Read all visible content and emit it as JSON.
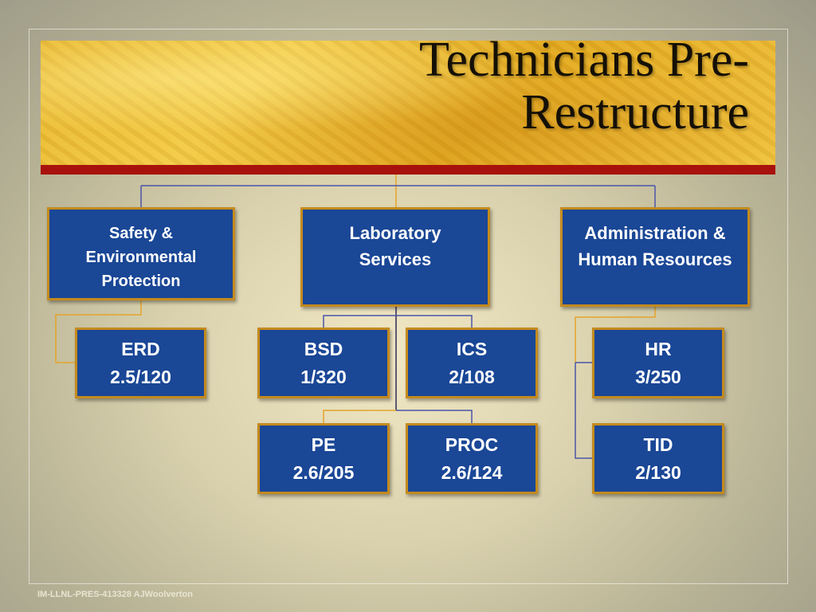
{
  "title": {
    "line1": "Technicians Pre-",
    "line2": "Restructure"
  },
  "departments": {
    "sep": {
      "name1": "Safety &",
      "name2": "Environmental",
      "name3": "Protection"
    },
    "lab": {
      "name1": "Laboratory",
      "name2": "Services"
    },
    "ahr": {
      "name1": "Administration &",
      "name2": "Human Resources"
    }
  },
  "units": {
    "erd": {
      "name": "ERD",
      "value": "2.5/120"
    },
    "bsd": {
      "name": "BSD",
      "value": "1/320"
    },
    "ics": {
      "name": "ICS",
      "value": "2/108"
    },
    "pe": {
      "name": "PE",
      "value": "2.6/205"
    },
    "proc": {
      "name": "PROC",
      "value": "2.6/124"
    },
    "hr": {
      "name": "HR",
      "value": "3/250"
    },
    "tid": {
      "name": "TID",
      "value": "2/130"
    }
  },
  "footer": "IM-LLNL-PRES-413328  AJWoolverton",
  "colors": {
    "box_fill": "#1a4796",
    "box_border": "#c48a1e",
    "accent_red": "#a8120c",
    "link_blue": "#4a55a8",
    "link_gold": "#e3a42a"
  }
}
